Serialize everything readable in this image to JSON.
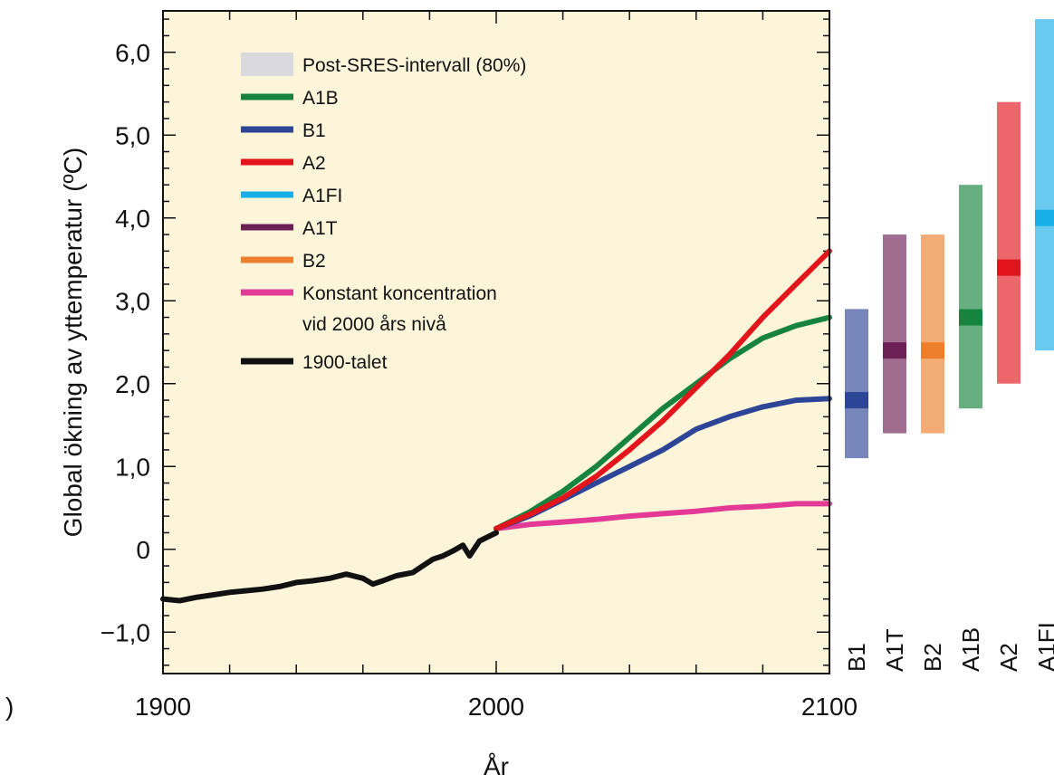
{
  "chart_data": {
    "type": "line",
    "xlabel": "År",
    "ylabel": "Global ökning av yttemperatur (ºC)",
    "xlim": [
      1900,
      2100
    ],
    "ylim": [
      -1.5,
      6.5
    ],
    "x_ticks": [
      1900,
      2000,
      2100
    ],
    "x_tick_labels": [
      "1900",
      "2000",
      "2100"
    ],
    "y_ticks": [
      -1,
      0,
      1,
      2,
      3,
      4,
      5,
      6
    ],
    "y_tick_labels": [
      "−1,0",
      "0",
      "1,0",
      "2,0",
      "3,0",
      "4,0",
      "5,0",
      "6,0"
    ],
    "stray_left_label": ")",
    "plot_background": "#fdf5d9",
    "legend_position": "top-left",
    "legend": [
      {
        "label": "Post-SRES-intervall (80%)",
        "color": "#d9d9de",
        "kind": "patch"
      },
      {
        "label": "A1B",
        "color": "#16843e",
        "kind": "line"
      },
      {
        "label": "B1",
        "color": "#2d4597",
        "kind": "line"
      },
      {
        "label": "A2",
        "color": "#e2141c",
        "kind": "line"
      },
      {
        "label": "A1FI",
        "color": "#18aee6",
        "kind": "line"
      },
      {
        "label": "A1T",
        "color": "#6b1f55",
        "kind": "line"
      },
      {
        "label": "B2",
        "color": "#ec7f2b",
        "kind": "line"
      },
      {
        "label": "Konstant koncentration",
        "label2": "vid 2000 års nivå",
        "color": "#e23a96",
        "kind": "line"
      },
      {
        "label": "1900-talet",
        "color": "#111111",
        "kind": "line"
      }
    ],
    "series": [
      {
        "key": "20th_century",
        "color": "#111111",
        "x": [
          1900,
          1905,
          1910,
          1915,
          1920,
          1925,
          1930,
          1935,
          1940,
          1945,
          1950,
          1955,
          1960,
          1963,
          1966,
          1970,
          1975,
          1978,
          1981,
          1984,
          1987,
          1990,
          1992,
          1995,
          2000
        ],
        "y": [
          -0.6,
          -0.62,
          -0.58,
          -0.55,
          -0.52,
          -0.5,
          -0.48,
          -0.45,
          -0.4,
          -0.38,
          -0.35,
          -0.3,
          -0.35,
          -0.42,
          -0.38,
          -0.32,
          -0.28,
          -0.2,
          -0.12,
          -0.08,
          -0.02,
          0.05,
          -0.08,
          0.1,
          0.2
        ]
      },
      {
        "key": "commitment",
        "color": "#e23a96",
        "x": [
          2000,
          2010,
          2020,
          2030,
          2040,
          2050,
          2060,
          2070,
          2080,
          2090,
          2100
        ],
        "y": [
          0.25,
          0.3,
          0.33,
          0.36,
          0.4,
          0.43,
          0.46,
          0.5,
          0.52,
          0.55,
          0.55
        ]
      },
      {
        "key": "B1",
        "color": "#2d4597",
        "x": [
          2000,
          2010,
          2020,
          2030,
          2040,
          2050,
          2060,
          2070,
          2080,
          2090,
          2100
        ],
        "y": [
          0.25,
          0.4,
          0.6,
          0.8,
          1.0,
          1.2,
          1.45,
          1.6,
          1.72,
          1.8,
          1.82
        ]
      },
      {
        "key": "A1B",
        "color": "#16843e",
        "x": [
          2000,
          2010,
          2020,
          2030,
          2040,
          2050,
          2060,
          2070,
          2080,
          2090,
          2100
        ],
        "y": [
          0.25,
          0.45,
          0.7,
          1.0,
          1.35,
          1.7,
          2.0,
          2.3,
          2.55,
          2.7,
          2.8
        ]
      },
      {
        "key": "A2",
        "color": "#e2141c",
        "x": [
          2000,
          2010,
          2020,
          2030,
          2040,
          2050,
          2060,
          2070,
          2080,
          2090,
          2100
        ],
        "y": [
          0.25,
          0.42,
          0.62,
          0.88,
          1.2,
          1.55,
          1.95,
          2.35,
          2.8,
          3.2,
          3.6
        ]
      }
    ],
    "range_bars": [
      {
        "label": "B1",
        "color": "#2d4597",
        "low": 1.1,
        "high": 2.9,
        "best": 1.8
      },
      {
        "label": "A1T",
        "color": "#6b1f55",
        "low": 1.4,
        "high": 3.8,
        "best": 2.4
      },
      {
        "label": "B2",
        "color": "#ec7f2b",
        "low": 1.4,
        "high": 3.8,
        "best": 2.4
      },
      {
        "label": "A1B",
        "color": "#16843e",
        "low": 1.7,
        "high": 4.4,
        "best": 2.8
      },
      {
        "label": "A2",
        "color": "#e2141c",
        "low": 2.0,
        "high": 5.4,
        "best": 3.4
      },
      {
        "label": "A1FI",
        "color": "#18aee6",
        "low": 2.4,
        "high": 6.4,
        "best": 4.0
      }
    ]
  }
}
